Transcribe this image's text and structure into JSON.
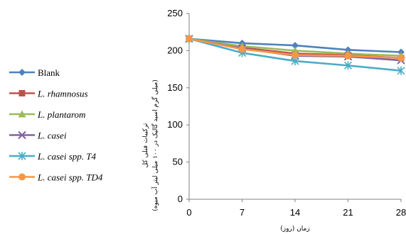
{
  "chart_data": {
    "type": "line",
    "x": [
      0,
      7,
      14,
      21,
      28
    ],
    "xlabel": "زمان (روز)",
    "ylabel": "ترکیبات فنلی کل",
    "ylabel_sub": "(میلی گرم اسید گالیک در ۱۰۰ میلی لیتر آب میوه)",
    "ylim": [
      0,
      250
    ],
    "yticks": [
      0,
      50,
      100,
      150,
      200,
      250
    ],
    "grid": false,
    "legend_position": "left",
    "series": [
      {
        "name": "Blank",
        "color": "#4f81bd",
        "marker": "diamond",
        "values": [
          216,
          210,
          207,
          201,
          198
        ]
      },
      {
        "name": "L. rhamnosus",
        "color": "#c0504d",
        "marker": "square",
        "values": [
          216,
          204,
          196,
          194,
          190
        ]
      },
      {
        "name": "L. plantarom",
        "color": "#9bbb59",
        "marker": "triangle",
        "values": [
          216,
          206,
          200,
          196,
          193
        ]
      },
      {
        "name": "L. casei",
        "color": "#8064a2",
        "marker": "x",
        "values": [
          216,
          203,
          193,
          192,
          187
        ]
      },
      {
        "name": "L. casei spp. T4",
        "color": "#4bacc6",
        "marker": "star",
        "values": [
          216,
          197,
          186,
          180,
          173
        ]
      },
      {
        "name": "L. casei spp. TD4",
        "color": "#f79646",
        "marker": "circle",
        "values": [
          216,
          202,
          194,
          193,
          190
        ]
      }
    ]
  }
}
